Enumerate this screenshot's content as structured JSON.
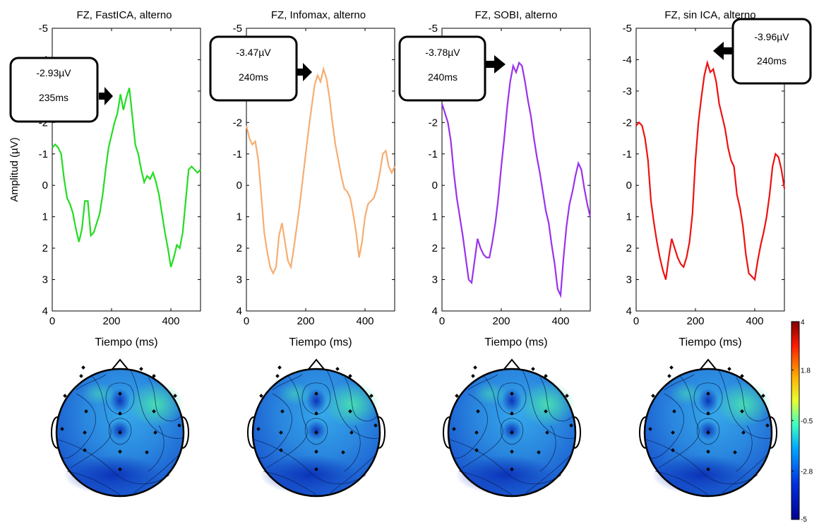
{
  "figure": {
    "ylabel": "Amplitud (µV)",
    "xlabel": "Tiempo (ms)",
    "colorbar": {
      "ticks": [
        "4",
        "1.8",
        "-0.5",
        "-2.8",
        "-5"
      ],
      "range": [
        -5,
        4
      ]
    }
  },
  "chart_data": [
    {
      "type": "line",
      "title": "FZ, FastICA, alterno",
      "xlabel": "Tiempo (ms)",
      "ylabel": "Amplitud (µV)",
      "xlim": [
        0,
        500
      ],
      "ylim": [
        4,
        -5
      ],
      "y_inverted": true,
      "xticks": [
        "0",
        "200",
        "400"
      ],
      "yticks": [
        "-5",
        "-4",
        "-3",
        "-2",
        "-1",
        "0",
        "1",
        "2",
        "3",
        "4"
      ],
      "color": "#22dd22",
      "x": [
        0,
        10,
        20,
        30,
        40,
        50,
        60,
        70,
        80,
        90,
        100,
        110,
        120,
        130,
        140,
        150,
        160,
        170,
        180,
        190,
        200,
        210,
        220,
        230,
        240,
        250,
        260,
        270,
        280,
        290,
        300,
        310,
        320,
        330,
        340,
        350,
        360,
        370,
        380,
        390,
        400,
        410,
        420,
        430,
        440,
        450,
        460,
        470,
        480,
        490,
        500
      ],
      "values": [
        -1.2,
        -1.3,
        -1.2,
        -1.0,
        -0.2,
        0.4,
        0.6,
        0.9,
        1.4,
        1.8,
        1.4,
        0.5,
        0.5,
        1.6,
        1.5,
        1.2,
        0.9,
        0.3,
        -0.5,
        -1.2,
        -1.6,
        -2.0,
        -2.3,
        -2.9,
        -2.4,
        -2.8,
        -3.1,
        -2.2,
        -1.3,
        -1.0,
        -0.5,
        -0.1,
        -0.3,
        -0.2,
        -0.4,
        -0.1,
        0.3,
        0.9,
        1.5,
        2.0,
        2.6,
        2.3,
        1.9,
        2.0,
        1.5,
        0.5,
        -0.5,
        -0.6,
        -0.5,
        -0.4,
        -0.5
      ],
      "callout": {
        "amplitude": "-2.93µV",
        "latency": "235ms"
      }
    },
    {
      "type": "line",
      "title": "FZ, Infomax, alterno",
      "xlabel": "Tiempo (ms)",
      "xlim": [
        0,
        500
      ],
      "ylim": [
        4,
        -5
      ],
      "y_inverted": true,
      "xticks": [
        "0",
        "200",
        "400"
      ],
      "yticks": [
        "-5",
        "-4",
        "-3",
        "-2",
        "-1",
        "0",
        "1",
        "2",
        "3",
        "4"
      ],
      "color": "#f7ad70",
      "x": [
        0,
        10,
        20,
        30,
        40,
        50,
        60,
        70,
        80,
        90,
        100,
        110,
        120,
        130,
        140,
        150,
        160,
        170,
        180,
        190,
        200,
        210,
        220,
        230,
        240,
        250,
        260,
        270,
        280,
        290,
        300,
        310,
        320,
        330,
        340,
        350,
        360,
        370,
        380,
        390,
        400,
        410,
        420,
        430,
        440,
        450,
        460,
        470,
        480,
        490,
        500
      ],
      "values": [
        -1.9,
        -1.5,
        -1.3,
        -1.4,
        -0.8,
        0.3,
        1.5,
        2.1,
        2.6,
        2.8,
        2.6,
        1.6,
        1.2,
        1.8,
        2.4,
        2.6,
        2.0,
        1.3,
        0.6,
        -0.2,
        -1.0,
        -1.8,
        -2.5,
        -3.2,
        -3.5,
        -3.3,
        -3.7,
        -3.4,
        -2.8,
        -2.0,
        -1.3,
        -0.8,
        -0.3,
        0.1,
        0.2,
        0.4,
        0.9,
        1.5,
        2.3,
        1.8,
        1.0,
        0.6,
        0.5,
        0.4,
        0.1,
        -0.4,
        -1.0,
        -1.1,
        -0.6,
        -0.4,
        -0.6
      ],
      "callout": {
        "amplitude": "-3.47µV",
        "latency": "240ms"
      }
    },
    {
      "type": "line",
      "title": "FZ, SOBI, alterno",
      "xlabel": "Tiempo (ms)",
      "xlim": [
        0,
        500
      ],
      "ylim": [
        4,
        -5
      ],
      "y_inverted": true,
      "xticks": [
        "0",
        "200",
        "400"
      ],
      "yticks": [
        "-5",
        "-4",
        "-3",
        "-2",
        "-1",
        "0",
        "1",
        "2",
        "3",
        "4"
      ],
      "color": "#9932ee",
      "x": [
        0,
        10,
        20,
        30,
        40,
        50,
        60,
        70,
        80,
        90,
        100,
        110,
        120,
        130,
        140,
        150,
        160,
        170,
        180,
        190,
        200,
        210,
        220,
        230,
        240,
        250,
        260,
        270,
        280,
        290,
        300,
        310,
        320,
        330,
        340,
        350,
        360,
        370,
        380,
        390,
        400,
        410,
        420,
        430,
        440,
        450,
        460,
        470,
        480,
        490,
        500
      ],
      "values": [
        -2.6,
        -2.3,
        -2.0,
        -1.4,
        -0.4,
        0.4,
        1.0,
        1.6,
        2.3,
        3.0,
        3.1,
        2.4,
        1.7,
        2.0,
        2.2,
        2.3,
        2.3,
        1.8,
        1.2,
        0.4,
        -0.6,
        -1.5,
        -2.5,
        -3.3,
        -3.8,
        -3.6,
        -3.9,
        -3.8,
        -3.3,
        -2.7,
        -2.2,
        -1.5,
        -0.9,
        -0.4,
        0.2,
        0.8,
        1.2,
        1.9,
        2.5,
        3.3,
        3.5,
        2.3,
        1.3,
        0.6,
        0.2,
        -0.3,
        -0.7,
        -0.5,
        0.1,
        0.6,
        1.0
      ],
      "callout": {
        "amplitude": "-3.78µV",
        "latency": "240ms"
      }
    },
    {
      "type": "line",
      "title": "FZ, sin ICA, alterno",
      "xlabel": "Tiempo (ms)",
      "xlim": [
        0,
        500
      ],
      "ylim": [
        4,
        -5
      ],
      "y_inverted": true,
      "xticks": [
        "0",
        "200",
        "400"
      ],
      "yticks": [
        "-5",
        "-4",
        "-3",
        "-2",
        "-1",
        "0",
        "1",
        "2",
        "3",
        "4"
      ],
      "color": "#ee1111",
      "x": [
        0,
        10,
        20,
        30,
        40,
        50,
        60,
        70,
        80,
        90,
        100,
        110,
        120,
        130,
        140,
        150,
        160,
        170,
        180,
        190,
        200,
        210,
        220,
        230,
        240,
        250,
        260,
        270,
        280,
        290,
        300,
        310,
        320,
        330,
        340,
        350,
        360,
        370,
        380,
        390,
        400,
        410,
        420,
        430,
        440,
        450,
        460,
        470,
        480,
        490,
        500
      ],
      "values": [
        -1.9,
        -2.0,
        -1.9,
        -1.5,
        -0.8,
        0.5,
        1.2,
        1.8,
        2.3,
        2.7,
        3.0,
        2.3,
        1.7,
        2.0,
        2.3,
        2.5,
        2.6,
        2.3,
        1.8,
        0.9,
        -0.8,
        -2.0,
        -2.8,
        -3.5,
        -3.9,
        -3.6,
        -3.7,
        -3.3,
        -2.6,
        -2.2,
        -1.8,
        -1.2,
        -0.8,
        -0.6,
        0.3,
        0.7,
        1.3,
        2.2,
        2.8,
        2.9,
        3.0,
        2.4,
        1.9,
        1.5,
        1.0,
        0.3,
        -0.6,
        -1.0,
        -0.9,
        -0.5,
        0.1
      ],
      "callout": {
        "amplitude": "-3.96µV",
        "latency": "240ms"
      }
    }
  ]
}
